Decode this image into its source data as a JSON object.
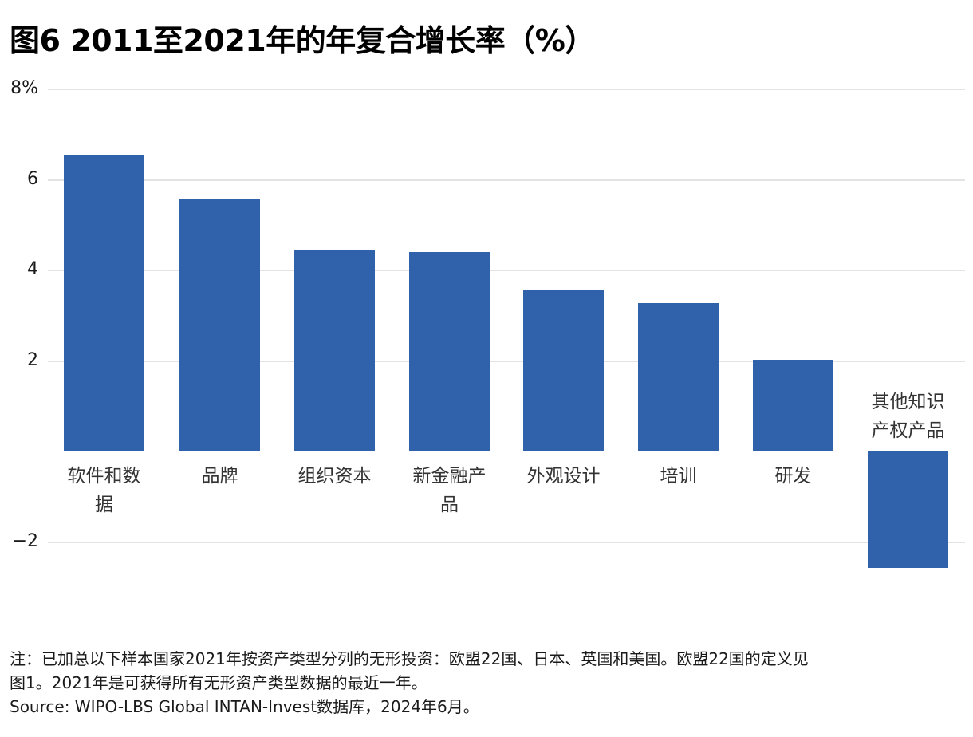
{
  "title": "图6 2011至2021年的年复合增长率（%）",
  "chart_data": {
    "type": "bar",
    "title": "图6 2011至2021年的年复合增长率（%）",
    "xlabel": "",
    "ylabel": "",
    "ylim": [
      -2.8,
      8
    ],
    "yticks": [
      8,
      6,
      4,
      2,
      -2
    ],
    "ytick_labels": [
      "8%",
      "6",
      "4",
      "2",
      "−2"
    ],
    "grid": true,
    "legend": "none",
    "bar_color": "#2f62ab",
    "categories": [
      "软件和数据",
      "品牌",
      "组织资本",
      "新金融产品",
      "外观设计",
      "培训",
      "研发",
      "其他知识产权产品"
    ],
    "category_label_lines": [
      [
        "软件和数",
        "据"
      ],
      [
        "品牌"
      ],
      [
        "组织资本"
      ],
      [
        "新金融产",
        "品"
      ],
      [
        "外观设计"
      ],
      [
        "培训"
      ],
      [
        "研发"
      ],
      [
        "其他知识",
        "产权产品"
      ]
    ],
    "values": [
      6.56,
      5.59,
      4.44,
      4.41,
      3.58,
      3.28,
      2.03,
      -2.57
    ]
  },
  "footnote": {
    "line1": "注：已加总以下样本国家2021年按资产类型分列的无形投资：欧盟22国、日本、英国和美国。欧盟22国的定义见",
    "line2": "图1。2021年是可获得所有无形资产类型数据的最近一年。",
    "source": "Source: WIPO-LBS Global INTAN-Invest数据库，2024年6月。"
  }
}
